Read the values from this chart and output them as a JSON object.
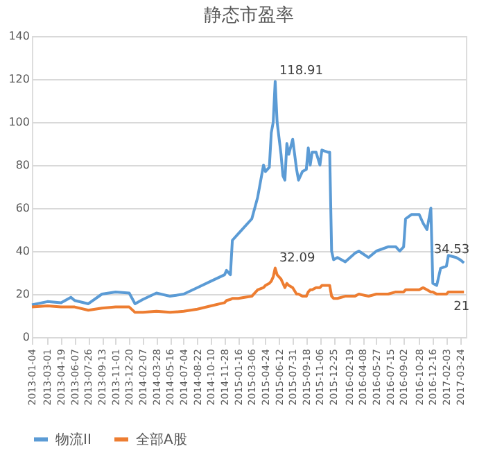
{
  "chart_data": {
    "type": "line",
    "title": "静态市盈率",
    "x": [
      "2013-01-04",
      "2013-03-01",
      "2013-04-19",
      "2013-05-24",
      "2013-06-07",
      "2013-07-26",
      "2013-09-13",
      "2013-11-01",
      "2013-12-20",
      "2014-01-10",
      "2014-02-07",
      "2014-03-28",
      "2014-05-16",
      "2014-07-04",
      "2014-08-22",
      "2014-10-10",
      "2014-11-28",
      "2014-12-05",
      "2014-12-19",
      "2014-12-26",
      "2015-01-16",
      "2015-03-06",
      "2015-03-27",
      "2015-04-17",
      "2015-04-24",
      "2015-05-08",
      "2015-05-15",
      "2015-05-22",
      "2015-05-29",
      "2015-06-05",
      "2015-06-19",
      "2015-06-26",
      "2015-07-03",
      "2015-07-10",
      "2015-07-17",
      "2015-07-31",
      "2015-08-14",
      "2015-08-21",
      "2015-09-04",
      "2015-09-18",
      "2015-09-25",
      "2015-10-02",
      "2015-10-09",
      "2015-10-23",
      "2015-11-06",
      "2015-11-13",
      "2015-12-04",
      "2015-12-11",
      "2015-12-18",
      "2015-12-25",
      "2016-01-08",
      "2016-02-05",
      "2016-03-11",
      "2016-03-25",
      "2016-04-29",
      "2016-05-27",
      "2016-07-08",
      "2016-08-05",
      "2016-08-19",
      "2016-09-02",
      "2016-09-09",
      "2016-09-30",
      "2016-10-28",
      "2016-11-11",
      "2016-11-25",
      "2016-12-09",
      "2016-12-16",
      "2016-12-30",
      "2017-01-13",
      "2017-02-03",
      "2017-02-10",
      "2017-03-10",
      "2017-03-24",
      "2017-04-07"
    ],
    "series": [
      {
        "name": "物流II",
        "color": "#5b9bd5",
        "values": [
          15,
          16.5,
          16,
          18.5,
          17,
          15.5,
          20,
          21,
          20.5,
          15.5,
          17.5,
          20.5,
          19,
          20,
          23,
          26,
          29,
          31,
          29,
          45,
          48,
          55,
          65,
          80,
          77,
          79,
          95,
          100,
          118.91,
          100,
          85,
          75,
          73,
          90,
          85,
          92,
          78,
          73,
          77,
          78,
          88,
          80,
          86,
          86,
          80,
          87,
          86,
          86,
          40,
          36,
          37,
          35,
          39,
          40,
          37,
          40,
          42,
          42,
          40,
          42,
          55,
          57,
          57,
          53,
          50,
          60,
          25,
          24,
          32,
          33,
          38,
          37,
          36,
          34.53
        ]
      },
      {
        "name": "全部A股",
        "color": "#ed7d31",
        "values": [
          14,
          14.5,
          14,
          14,
          14,
          12.5,
          13.5,
          14,
          14,
          11.5,
          11.5,
          12,
          11.5,
          12,
          13,
          14.5,
          16,
          17,
          17.5,
          18,
          18,
          19,
          22,
          23,
          24,
          25,
          26,
          28,
          32.09,
          29,
          27,
          25,
          23,
          25,
          24,
          23,
          20,
          20,
          19,
          19,
          21,
          22,
          22,
          23,
          23,
          24,
          24,
          24,
          19,
          18,
          18,
          19,
          19,
          20,
          19,
          20,
          20,
          21,
          21,
          21,
          22,
          22,
          22,
          23,
          22,
          21,
          21,
          20,
          20,
          20,
          21,
          21,
          21,
          21
        ]
      }
    ],
    "xlim": [
      "2013-01-04",
      "2017-04-14"
    ],
    "xticks": [
      "2013-01-04",
      "2013-03-01",
      "2013-04-19",
      "2013-06-07",
      "2013-07-26",
      "2013-09-13",
      "2013-11-01",
      "2013-12-20",
      "2014-02-07",
      "2014-03-28",
      "2014-05-16",
      "2014-07-04",
      "2014-08-22",
      "2014-10-10",
      "2014-11-28",
      "2015-01-16",
      "2015-03-06",
      "2015-04-24",
      "2015-06-12",
      "2015-07-31",
      "2015-09-18",
      "2015-11-06",
      "2015-12-25",
      "2016-02-19",
      "2016-04-08",
      "2016-05-27",
      "2016-07-15",
      "2016-09-02",
      "2016-10-28",
      "2016-12-16",
      "2017-02-03",
      "2017-03-24"
    ],
    "ylim": [
      0,
      140
    ],
    "yticks": [
      0,
      20,
      40,
      60,
      80,
      100,
      120,
      140
    ],
    "grid": "y",
    "legend": "bottom",
    "annotations": [
      {
        "text": "118.91",
        "x": "2015-05-29",
        "y": 118.91
      },
      {
        "text": "32.09",
        "x": "2015-05-29",
        "y": 32.09
      },
      {
        "text": "34.53",
        "x": "2017-04-07",
        "y": 34.53
      },
      {
        "text": "21",
        "x": "2017-04-07",
        "y": 21
      }
    ]
  }
}
